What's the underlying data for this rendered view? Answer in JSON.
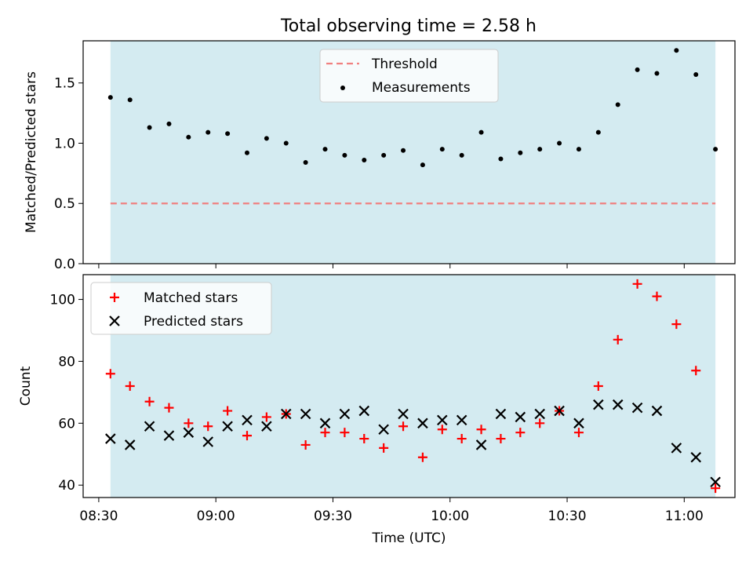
{
  "title": "Total observing time = 2.58 h",
  "colors": {
    "shade": "#d4ebf1",
    "threshold": "#f08080",
    "measurement": "#000000",
    "matched": "#ff0000",
    "predicted": "#000000"
  },
  "chart_data": [
    {
      "type": "scatter",
      "ylabel": "Matched/Predicted stars",
      "ylim": [
        0,
        1.85
      ],
      "yticks": [
        "0.0",
        "0.5",
        "1.0",
        "1.5"
      ],
      "xlim": [
        "08:26",
        "11:13"
      ],
      "shaded_interval": [
        "08:33",
        "11:08"
      ],
      "threshold": 0.5,
      "legend": {
        "position": "top-center",
        "threshold_label": "Threshold",
        "measurements_label": "Measurements"
      },
      "series": [
        {
          "name": "Measurements",
          "x": [
            "08:33",
            "08:38",
            "08:43",
            "08:48",
            "08:53",
            "08:58",
            "09:03",
            "09:08",
            "09:13",
            "09:18",
            "09:23",
            "09:28",
            "09:33",
            "09:38",
            "09:43",
            "09:48",
            "09:53",
            "09:58",
            "10:03",
            "10:08",
            "10:13",
            "10:18",
            "10:23",
            "10:28",
            "10:33",
            "10:38",
            "10:43",
            "10:48",
            "10:53",
            "10:58",
            "11:03",
            "11:08"
          ],
          "y": [
            1.38,
            1.36,
            1.13,
            1.16,
            1.05,
            1.09,
            1.08,
            0.92,
            1.04,
            1.0,
            0.84,
            0.95,
            0.9,
            0.86,
            0.9,
            0.94,
            0.82,
            0.95,
            0.9,
            1.09,
            0.87,
            0.92,
            0.95,
            1.0,
            0.95,
            1.09,
            1.32,
            1.61,
            1.58,
            1.77,
            1.57,
            0.95
          ]
        }
      ]
    },
    {
      "type": "scatter",
      "xlabel": "Time (UTC)",
      "ylabel": "Count",
      "ylim": [
        36,
        108
      ],
      "yticks": [
        "40",
        "60",
        "80",
        "100"
      ],
      "xticks": [
        "08:30",
        "09:00",
        "09:30",
        "10:00",
        "10:30",
        "11:00"
      ],
      "xlim": [
        "08:26",
        "11:13"
      ],
      "shaded_interval": [
        "08:33",
        "11:08"
      ],
      "legend": {
        "position": "top-left"
      },
      "series": [
        {
          "name": "Matched stars",
          "marker": "+",
          "x": [
            "08:33",
            "08:38",
            "08:43",
            "08:48",
            "08:53",
            "08:58",
            "09:03",
            "09:08",
            "09:13",
            "09:18",
            "09:23",
            "09:28",
            "09:33",
            "09:38",
            "09:43",
            "09:48",
            "09:53",
            "09:58",
            "10:03",
            "10:08",
            "10:13",
            "10:18",
            "10:23",
            "10:28",
            "10:33",
            "10:38",
            "10:43",
            "10:48",
            "10:53",
            "10:58",
            "11:03",
            "11:08"
          ],
          "y": [
            76,
            72,
            67,
            65,
            60,
            59,
            64,
            56,
            62,
            63,
            53,
            57,
            57,
            55,
            52,
            59,
            49,
            58,
            55,
            58,
            55,
            57,
            60,
            64,
            57,
            72,
            87,
            105,
            101,
            92,
            77,
            39
          ]
        },
        {
          "name": "Predicted stars",
          "marker": "x",
          "x": [
            "08:33",
            "08:38",
            "08:43",
            "08:48",
            "08:53",
            "08:58",
            "09:03",
            "09:08",
            "09:13",
            "09:18",
            "09:23",
            "09:28",
            "09:33",
            "09:38",
            "09:43",
            "09:48",
            "09:53",
            "09:58",
            "10:03",
            "10:08",
            "10:13",
            "10:18",
            "10:23",
            "10:28",
            "10:33",
            "10:38",
            "10:43",
            "10:48",
            "10:53",
            "10:58",
            "11:03",
            "11:08"
          ],
          "y": [
            55,
            53,
            59,
            56,
            57,
            54,
            59,
            61,
            59,
            63,
            63,
            60,
            63,
            64,
            58,
            63,
            60,
            61,
            61,
            53,
            63,
            62,
            63,
            64,
            60,
            66,
            66,
            65,
            64,
            52,
            49,
            41
          ]
        }
      ]
    }
  ]
}
